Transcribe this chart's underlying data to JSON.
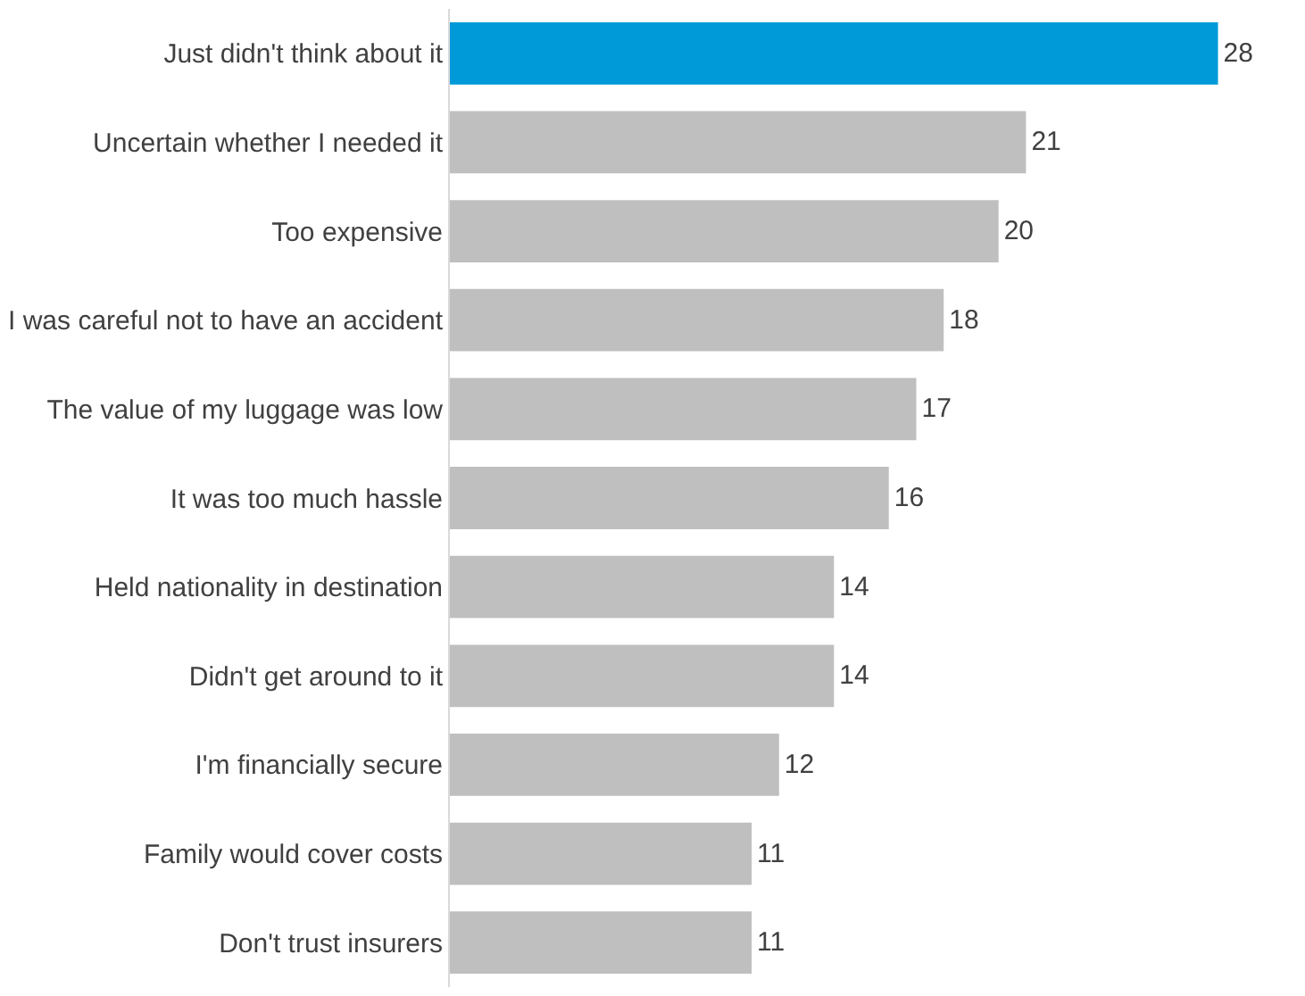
{
  "chart_data": {
    "type": "bar",
    "orientation": "horizontal",
    "data_labels": true,
    "categories": [
      "Just didn't think about it",
      "Uncertain whether I needed it",
      "Too expensive",
      "I was careful not to have an accident",
      "The value of my luggage was low",
      "It was too much hassle",
      "Held nationality in destination",
      "Didn't get around to it",
      "I'm financially secure",
      "Family would cover costs",
      "Don't trust insurers"
    ],
    "values": [
      28,
      21,
      20,
      18,
      17,
      16,
      14,
      14,
      12,
      11,
      11
    ],
    "colors": [
      "#009ad9",
      "#bfbfbf",
      "#bfbfbf",
      "#bfbfbf",
      "#bfbfbf",
      "#bfbfbf",
      "#bfbfbf",
      "#bfbfbf",
      "#bfbfbf",
      "#bfbfbf",
      "#bfbfbf"
    ]
  }
}
